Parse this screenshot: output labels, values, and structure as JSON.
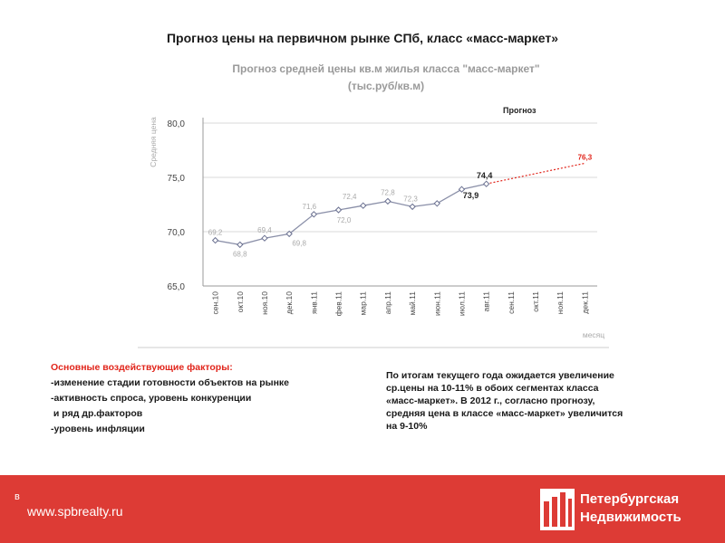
{
  "slide": {
    "title": "Прогноз цены на первичном рынке СПб, класс «масс-маркет»"
  },
  "chart_data": {
    "type": "line",
    "title": "Прогноз средней цены кв.м жилья класса \"масс-маркет\"",
    "subtitle": "(тыс.руб/кв.м)",
    "ylabel": "Средняя цена",
    "xlabel": "месяц",
    "legend": {
      "label": "Прогноз",
      "placement": "top-right"
    },
    "ylim": [
      65,
      80
    ],
    "yticks": [
      "65,0",
      "70,0",
      "75,0",
      "80,0"
    ],
    "grid": true,
    "categories": [
      "сен.10",
      "окт.10",
      "ноя.10",
      "дек.10",
      "янв.11",
      "фев.11",
      "мар.11",
      "апр.11",
      "май.11",
      "июн.11",
      "июл.11",
      "авг.11",
      "сен.11",
      "окт.11",
      "ноя.11",
      "дек.11"
    ],
    "series": [
      {
        "style": "solid",
        "color": "#8a8fa8",
        "values": [
          69.2,
          68.8,
          69.4,
          69.8,
          71.6,
          72.0,
          72.4,
          72.8,
          72.3,
          72.6,
          73.9,
          74.4,
          null,
          null,
          null,
          null
        ],
        "labels": [
          "69,2",
          "68,8",
          "69,4",
          "69,8",
          "71,6",
          "72,0",
          "72,4",
          "72,8",
          "72,3",
          "",
          "73,9",
          "74,4",
          "",
          "",
          "",
          ""
        ]
      },
      {
        "name": "Прогноз",
        "style": "dotted",
        "color": "#e1251b",
        "values": [
          null,
          null,
          null,
          null,
          null,
          null,
          null,
          null,
          null,
          null,
          null,
          74.4,
          null,
          null,
          null,
          76.3
        ],
        "labels": [
          "",
          "",
          "",
          "",
          "",
          "",
          "",
          "",
          "",
          "",
          "",
          "",
          "",
          "",
          "",
          "76,3"
        ]
      }
    ]
  },
  "factors": {
    "heading": "Основные воздействующие факторы:",
    "items": [
      "-изменение стадии готовности объектов на рынке",
      "-активность спроса, уровень конкуренции",
      " и ряд др.факторов",
      "-уровень инфляции"
    ]
  },
  "summary": {
    "lines": [
      "По итогам текущего года ожидается увеличение",
      "ср.цены на 10-11% в обоих сегментах класса",
      "«масс-маркет». В 2012 г., согласно прогнозу,",
      "средняя цена в классе «масс-маркет» увеличится",
      "на 9-10%"
    ]
  },
  "footer": {
    "bullet": "в",
    "url": "www.spbrealty.ru",
    "logo_line1": "Петербургская",
    "logo_line2": "Недвижимость",
    "color": "#dd3b35"
  }
}
